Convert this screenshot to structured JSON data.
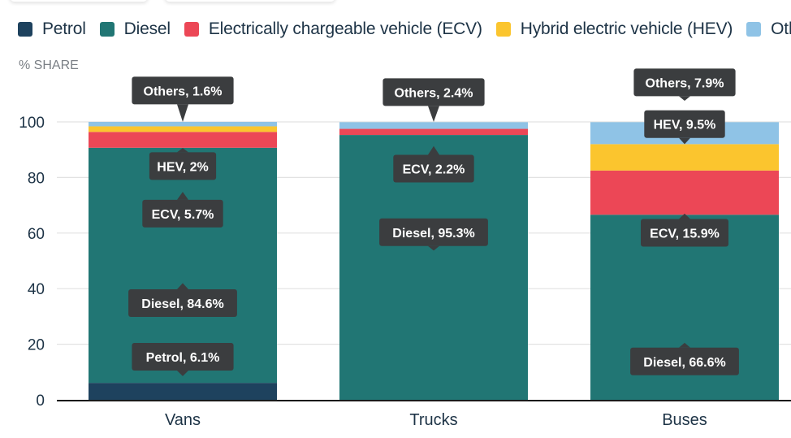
{
  "chart_data": {
    "type": "bar",
    "stacked": true,
    "title": "",
    "ylabel": "% SHARE",
    "xlabel": "",
    "ylim": [
      0,
      100
    ],
    "yticks": [
      0,
      20,
      40,
      60,
      80,
      100
    ],
    "grid": true,
    "legend_position": "top",
    "categories": [
      "Vans",
      "Trucks",
      "Buses"
    ],
    "series": [
      {
        "name": "Petrol",
        "short": "Petrol",
        "color": "#1e425e",
        "values": [
          6.1,
          0,
          0
        ]
      },
      {
        "name": "Diesel",
        "short": "Diesel",
        "color": "#217674",
        "values": [
          84.6,
          95.3,
          66.6
        ]
      },
      {
        "name": "Electrically chargeable vehicle (ECV)",
        "short": "ECV",
        "color": "#ec4756",
        "values": [
          5.7,
          2.2,
          15.9
        ]
      },
      {
        "name": "Hybrid electric vehicle (HEV)",
        "short": "HEV",
        "color": "#fbc52e",
        "values": [
          2,
          0,
          9.5
        ]
      },
      {
        "name": "Others",
        "short": "Others",
        "color": "#8fc3e6",
        "values": [
          1.6,
          2.4,
          7.9
        ]
      }
    ],
    "annotations": [
      {
        "category": "Vans",
        "series": "Others",
        "text": "Others, 1.6%",
        "pointer": "down",
        "anchor_value": 100,
        "center_value": 111.3
      },
      {
        "category": "Vans",
        "series": "HEV",
        "text": "HEV, 2%",
        "pointer": "up",
        "anchor_value": 90.6,
        "center_value": 84.1
      },
      {
        "category": "Vans",
        "series": "ECV",
        "text": "ECV, 5.7%",
        "pointer": "up",
        "anchor_value": 74.8,
        "center_value": 67.0
      },
      {
        "category": "Vans",
        "series": "Diesel",
        "text": "Diesel, 84.6%",
        "pointer": "up",
        "anchor_value": 42.0,
        "center_value": 34.8
      },
      {
        "category": "Vans",
        "series": "Petrol",
        "text": "Petrol, 6.1%",
        "pointer": "down",
        "anchor_value": 8.5,
        "center_value": 15.5
      },
      {
        "category": "Trucks",
        "series": "Others",
        "text": "Others, 2.4%",
        "pointer": "down",
        "anchor_value": 100,
        "center_value": 110.7
      },
      {
        "category": "Trucks",
        "series": "ECV",
        "text": "ECV, 2.2%",
        "pointer": "up",
        "anchor_value": 91.3,
        "center_value": 83.2
      },
      {
        "category": "Trucks",
        "series": "Diesel",
        "text": "Diesel, 95.3%",
        "pointer": "down",
        "anchor_value": 53.7,
        "center_value": 60.3
      },
      {
        "category": "Buses",
        "series": "Others",
        "text": "Others, 7.9%",
        "pointer": "down",
        "anchor_value": 107.6,
        "center_value": 114.2
      },
      {
        "category": "Buses",
        "series": "HEV",
        "text": "HEV, 9.5%",
        "pointer": "down",
        "anchor_value": 92.0,
        "center_value": 99.2
      },
      {
        "category": "Buses",
        "series": "ECV",
        "text": "ECV, 15.9%",
        "pointer": "up",
        "anchor_value": 67.0,
        "center_value": 60.1
      },
      {
        "category": "Buses",
        "series": "Diesel",
        "text": "Diesel, 66.6%",
        "pointer": "up",
        "anchor_value": 20.5,
        "center_value": 13.8
      }
    ]
  }
}
